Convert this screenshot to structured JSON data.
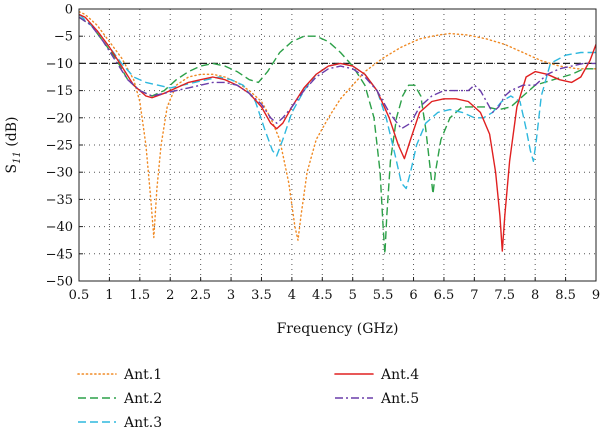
{
  "chart_data": {
    "type": "line",
    "title": "",
    "xlabel": "Frequency (GHz)",
    "ylabel_main": "S",
    "ylabel_sub": "11",
    "ylabel_unit": " (dB)",
    "xlim": [
      0.5,
      9
    ],
    "ylim": [
      -50,
      0
    ],
    "x_ticks": [
      0.5,
      1,
      1.5,
      2,
      2.5,
      3,
      3.5,
      4,
      4.5,
      5,
      5.5,
      6,
      6.5,
      7,
      7.5,
      8,
      8.5,
      9
    ],
    "x_tick_labels": [
      "0.5",
      "1",
      "1.5",
      "2",
      "2.5",
      "3",
      "3.5",
      "4",
      "4.5",
      "5",
      "5.5",
      "6",
      "6.5",
      "7",
      "7.5",
      "8",
      "8.5",
      "9"
    ],
    "y_ticks": [
      0,
      -5,
      -10,
      -15,
      -20,
      -25,
      -30,
      -35,
      -40,
      -45,
      -50
    ],
    "y_tick_labels": [
      "0",
      "−5",
      "−10",
      "−15",
      "−20",
      "−25",
      "−30",
      "−35",
      "−40",
      "−45",
      "−50"
    ],
    "grid": true,
    "grid_style": "dotted",
    "reference_line": {
      "y": -10,
      "style": "dashed",
      "color": "#222222"
    },
    "legend_position": "bottom",
    "series": [
      {
        "name": "Ant.1",
        "color": "#f08a24",
        "style": "dotted",
        "points": [
          [
            0.5,
            -0.5
          ],
          [
            0.6,
            -1
          ],
          [
            0.8,
            -3
          ],
          [
            1.0,
            -6
          ],
          [
            1.2,
            -9
          ],
          [
            1.4,
            -13
          ],
          [
            1.5,
            -17
          ],
          [
            1.6,
            -25
          ],
          [
            1.68,
            -35
          ],
          [
            1.73,
            -42
          ],
          [
            1.78,
            -33
          ],
          [
            1.85,
            -25
          ],
          [
            1.95,
            -18
          ],
          [
            2.1,
            -14
          ],
          [
            2.3,
            -12.5
          ],
          [
            2.5,
            -12
          ],
          [
            2.7,
            -12
          ],
          [
            2.9,
            -12.5
          ],
          [
            3.1,
            -13.5
          ],
          [
            3.3,
            -15
          ],
          [
            3.5,
            -17
          ],
          [
            3.65,
            -20
          ],
          [
            3.8,
            -24
          ],
          [
            3.95,
            -32
          ],
          [
            4.05,
            -40
          ],
          [
            4.1,
            -42.5
          ],
          [
            4.15,
            -38
          ],
          [
            4.25,
            -30
          ],
          [
            4.4,
            -24
          ],
          [
            4.6,
            -20
          ],
          [
            4.8,
            -16.5
          ],
          [
            5.0,
            -14
          ],
          [
            5.2,
            -11.5
          ],
          [
            5.5,
            -9
          ],
          [
            5.8,
            -7
          ],
          [
            6.1,
            -5.5
          ],
          [
            6.4,
            -4.8
          ],
          [
            6.6,
            -4.5
          ],
          [
            6.9,
            -4.8
          ],
          [
            7.2,
            -5.5
          ],
          [
            7.5,
            -6.5
          ],
          [
            7.8,
            -8
          ],
          [
            8.1,
            -9.5
          ],
          [
            8.4,
            -10.5
          ],
          [
            8.7,
            -11
          ],
          [
            9.0,
            -11
          ]
        ]
      },
      {
        "name": "Ant.2",
        "color": "#2ca048",
        "style": "dashed",
        "points": [
          [
            0.5,
            -1.5
          ],
          [
            0.7,
            -3
          ],
          [
            0.9,
            -6
          ],
          [
            1.1,
            -9
          ],
          [
            1.3,
            -13
          ],
          [
            1.5,
            -15
          ],
          [
            1.7,
            -16
          ],
          [
            1.9,
            -15
          ],
          [
            2.1,
            -13
          ],
          [
            2.3,
            -11.5
          ],
          [
            2.5,
            -10.5
          ],
          [
            2.7,
            -10
          ],
          [
            2.9,
            -10.5
          ],
          [
            3.1,
            -11.5
          ],
          [
            3.3,
            -13
          ],
          [
            3.45,
            -13.5
          ],
          [
            3.6,
            -11.5
          ],
          [
            3.8,
            -8
          ],
          [
            4.0,
            -6
          ],
          [
            4.2,
            -5
          ],
          [
            4.4,
            -5
          ],
          [
            4.6,
            -6
          ],
          [
            4.8,
            -8
          ],
          [
            5.0,
            -10.5
          ],
          [
            5.2,
            -14
          ],
          [
            5.35,
            -20
          ],
          [
            5.45,
            -30
          ],
          [
            5.5,
            -40
          ],
          [
            5.53,
            -45
          ],
          [
            5.56,
            -38
          ],
          [
            5.62,
            -28
          ],
          [
            5.72,
            -20
          ],
          [
            5.82,
            -16
          ],
          [
            5.92,
            -14
          ],
          [
            6.02,
            -14
          ],
          [
            6.12,
            -16
          ],
          [
            6.2,
            -22
          ],
          [
            6.28,
            -30
          ],
          [
            6.32,
            -34
          ],
          [
            6.36,
            -30
          ],
          [
            6.45,
            -24
          ],
          [
            6.6,
            -20
          ],
          [
            6.8,
            -18
          ],
          [
            7.0,
            -18
          ],
          [
            7.2,
            -18
          ],
          [
            7.4,
            -18.5
          ],
          [
            7.6,
            -18
          ],
          [
            7.8,
            -16
          ],
          [
            8.0,
            -14
          ],
          [
            8.3,
            -13
          ],
          [
            8.6,
            -12
          ],
          [
            8.8,
            -11
          ],
          [
            9.0,
            -11
          ]
        ]
      },
      {
        "name": "Ant.3",
        "color": "#2eb8de",
        "style": "dashed",
        "points": [
          [
            0.5,
            -1
          ],
          [
            0.6,
            -2
          ],
          [
            0.8,
            -4
          ],
          [
            1.0,
            -7
          ],
          [
            1.2,
            -10
          ],
          [
            1.4,
            -12.5
          ],
          [
            1.6,
            -13.5
          ],
          [
            1.8,
            -14
          ],
          [
            2.0,
            -14.5
          ],
          [
            2.2,
            -14
          ],
          [
            2.4,
            -13.5
          ],
          [
            2.6,
            -13
          ],
          [
            2.8,
            -12.5
          ],
          [
            3.0,
            -13
          ],
          [
            3.2,
            -14
          ],
          [
            3.4,
            -17
          ],
          [
            3.55,
            -22
          ],
          [
            3.68,
            -26
          ],
          [
            3.75,
            -27
          ],
          [
            3.85,
            -24
          ],
          [
            4.0,
            -19
          ],
          [
            4.2,
            -15
          ],
          [
            4.4,
            -12
          ],
          [
            4.6,
            -10.5
          ],
          [
            4.8,
            -10
          ],
          [
            5.0,
            -10.5
          ],
          [
            5.2,
            -12
          ],
          [
            5.4,
            -15
          ],
          [
            5.55,
            -20
          ],
          [
            5.7,
            -27
          ],
          [
            5.8,
            -32
          ],
          [
            5.88,
            -33
          ],
          [
            5.95,
            -30
          ],
          [
            6.05,
            -25
          ],
          [
            6.2,
            -21
          ],
          [
            6.4,
            -19
          ],
          [
            6.6,
            -18.5
          ],
          [
            6.8,
            -19
          ],
          [
            7.0,
            -20
          ],
          [
            7.15,
            -20
          ],
          [
            7.3,
            -19
          ],
          [
            7.45,
            -17
          ],
          [
            7.6,
            -16
          ],
          [
            7.75,
            -17
          ],
          [
            7.85,
            -22
          ],
          [
            7.92,
            -26
          ],
          [
            7.97,
            -28
          ],
          [
            8.02,
            -24
          ],
          [
            8.1,
            -16
          ],
          [
            8.25,
            -10
          ],
          [
            8.5,
            -8.5
          ],
          [
            8.75,
            -8
          ],
          [
            9.0,
            -8
          ]
        ]
      },
      {
        "name": "Ant.4",
        "color": "#e02020",
        "style": "solid",
        "points": [
          [
            0.5,
            -1
          ],
          [
            0.6,
            -1.5
          ],
          [
            0.8,
            -4
          ],
          [
            1.0,
            -7
          ],
          [
            1.2,
            -10.5
          ],
          [
            1.4,
            -14
          ],
          [
            1.6,
            -16
          ],
          [
            1.7,
            -16.3
          ],
          [
            1.9,
            -15.5
          ],
          [
            2.1,
            -14.5
          ],
          [
            2.3,
            -13.5
          ],
          [
            2.5,
            -13
          ],
          [
            2.7,
            -12.5
          ],
          [
            2.9,
            -13
          ],
          [
            3.1,
            -14
          ],
          [
            3.3,
            -15.5
          ],
          [
            3.5,
            -18
          ],
          [
            3.65,
            -21
          ],
          [
            3.75,
            -22
          ],
          [
            3.85,
            -21
          ],
          [
            4.0,
            -18
          ],
          [
            4.2,
            -14.5
          ],
          [
            4.4,
            -12
          ],
          [
            4.6,
            -10.5
          ],
          [
            4.8,
            -10
          ],
          [
            5.0,
            -10.5
          ],
          [
            5.2,
            -12
          ],
          [
            5.4,
            -15
          ],
          [
            5.6,
            -20
          ],
          [
            5.75,
            -25
          ],
          [
            5.85,
            -27.5
          ],
          [
            5.95,
            -24
          ],
          [
            6.1,
            -19
          ],
          [
            6.3,
            -17
          ],
          [
            6.5,
            -16.5
          ],
          [
            6.7,
            -16.5
          ],
          [
            6.9,
            -17
          ],
          [
            7.1,
            -19
          ],
          [
            7.25,
            -23
          ],
          [
            7.35,
            -30
          ],
          [
            7.42,
            -38
          ],
          [
            7.46,
            -44.5
          ],
          [
            7.5,
            -38
          ],
          [
            7.58,
            -28
          ],
          [
            7.7,
            -18
          ],
          [
            7.85,
            -12.5
          ],
          [
            8.0,
            -11.5
          ],
          [
            8.2,
            -12
          ],
          [
            8.4,
            -13
          ],
          [
            8.6,
            -13.5
          ],
          [
            8.75,
            -12.5
          ],
          [
            8.9,
            -9.5
          ],
          [
            9.0,
            -6.5
          ]
        ]
      },
      {
        "name": "Ant.5",
        "color": "#6a3daa",
        "style": "dashdot",
        "points": [
          [
            0.5,
            -1.5
          ],
          [
            0.7,
            -3
          ],
          [
            0.9,
            -6
          ],
          [
            1.1,
            -9.5
          ],
          [
            1.3,
            -13
          ],
          [
            1.5,
            -15
          ],
          [
            1.7,
            -16
          ],
          [
            1.9,
            -15.5
          ],
          [
            2.1,
            -15
          ],
          [
            2.3,
            -14.5
          ],
          [
            2.5,
            -14
          ],
          [
            2.7,
            -13.5
          ],
          [
            2.9,
            -13.5
          ],
          [
            3.1,
            -14
          ],
          [
            3.3,
            -15.5
          ],
          [
            3.5,
            -17.5
          ],
          [
            3.65,
            -20
          ],
          [
            3.75,
            -21
          ],
          [
            3.85,
            -20
          ],
          [
            4.0,
            -18
          ],
          [
            4.2,
            -15
          ],
          [
            4.4,
            -12.5
          ],
          [
            4.6,
            -11
          ],
          [
            4.8,
            -10.5
          ],
          [
            5.0,
            -11
          ],
          [
            5.2,
            -12.5
          ],
          [
            5.4,
            -15
          ],
          [
            5.6,
            -19
          ],
          [
            5.8,
            -22
          ],
          [
            5.95,
            -21
          ],
          [
            6.1,
            -18
          ],
          [
            6.3,
            -16
          ],
          [
            6.5,
            -15
          ],
          [
            6.7,
            -15
          ],
          [
            6.9,
            -15
          ],
          [
            7.0,
            -14
          ],
          [
            7.1,
            -15
          ],
          [
            7.2,
            -17
          ],
          [
            7.3,
            -19
          ],
          [
            7.4,
            -18
          ],
          [
            7.5,
            -16
          ],
          [
            7.6,
            -15
          ],
          [
            7.8,
            -14
          ],
          [
            8.0,
            -14
          ],
          [
            8.2,
            -12
          ],
          [
            8.4,
            -11
          ],
          [
            8.6,
            -10.5
          ],
          [
            8.8,
            -10
          ],
          [
            9.0,
            -10
          ]
        ]
      }
    ]
  }
}
